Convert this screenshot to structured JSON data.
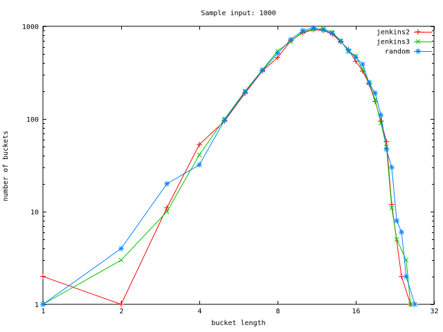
{
  "chart_data": {
    "type": "line",
    "title": "Sample input: 1000",
    "xlabel": "bucket length",
    "ylabel": "number of buckets",
    "x_scale": "log2",
    "y_scale": "log10",
    "xlim": [
      1,
      32
    ],
    "ylim": [
      1,
      1000
    ],
    "x_ticks": [
      1,
      2,
      4,
      8,
      16,
      32
    ],
    "y_ticks": [
      1,
      10,
      100,
      1000
    ],
    "grid": false,
    "legend_position": "top-right-inside",
    "background_color": "#ffffff",
    "border_color": "#000000",
    "series": [
      {
        "name": "jenkins2",
        "color": "#ff0000",
        "marker": "plus",
        "points": [
          [
            1,
            2
          ],
          [
            2,
            1
          ],
          [
            3,
            11
          ],
          [
            4,
            53
          ],
          [
            5,
            95
          ],
          [
            6,
            190
          ],
          [
            7,
            330
          ],
          [
            8,
            460
          ],
          [
            9,
            700
          ],
          [
            10,
            850
          ],
          [
            11,
            920
          ],
          [
            12,
            900
          ],
          [
            13,
            820
          ],
          [
            14,
            680
          ],
          [
            15,
            560
          ],
          [
            16,
            420
          ],
          [
            17,
            330
          ],
          [
            18,
            240
          ],
          [
            19,
            155
          ],
          [
            20,
            95
          ],
          [
            21,
            57
          ],
          [
            22,
            12
          ],
          [
            24,
            2
          ],
          [
            26,
            1
          ]
        ]
      },
      {
        "name": "jenkins3",
        "color": "#00c000",
        "marker": "cross",
        "points": [
          [
            1,
            1
          ],
          [
            2,
            3
          ],
          [
            3,
            10
          ],
          [
            4,
            41
          ],
          [
            5,
            100
          ],
          [
            6,
            200
          ],
          [
            7,
            340
          ],
          [
            8,
            540
          ],
          [
            9,
            690
          ],
          [
            10,
            870
          ],
          [
            11,
            930
          ],
          [
            12,
            940
          ],
          [
            13,
            860
          ],
          [
            14,
            700
          ],
          [
            15,
            530
          ],
          [
            16,
            480
          ],
          [
            17,
            340
          ],
          [
            18,
            250
          ],
          [
            19,
            160
          ],
          [
            20,
            90
          ],
          [
            21,
            50
          ],
          [
            22,
            11
          ],
          [
            23,
            5
          ],
          [
            25,
            3
          ],
          [
            26,
            1
          ]
        ]
      },
      {
        "name": "random",
        "color": "#0080ff",
        "marker": "asterisk",
        "points": [
          [
            1,
            1
          ],
          [
            2,
            4
          ],
          [
            3,
            20
          ],
          [
            4,
            32
          ],
          [
            5,
            97
          ],
          [
            6,
            195
          ],
          [
            7,
            335
          ],
          [
            8,
            510
          ],
          [
            9,
            720
          ],
          [
            10,
            900
          ],
          [
            11,
            960
          ],
          [
            12,
            910
          ],
          [
            13,
            840
          ],
          [
            14,
            690
          ],
          [
            15,
            550
          ],
          [
            16,
            460
          ],
          [
            17,
            390
          ],
          [
            18,
            245
          ],
          [
            19,
            190
          ],
          [
            20,
            110
          ],
          [
            21,
            47
          ],
          [
            22,
            30
          ],
          [
            23,
            8
          ],
          [
            24,
            6
          ],
          [
            25,
            2
          ],
          [
            27,
            1
          ]
        ]
      }
    ]
  }
}
